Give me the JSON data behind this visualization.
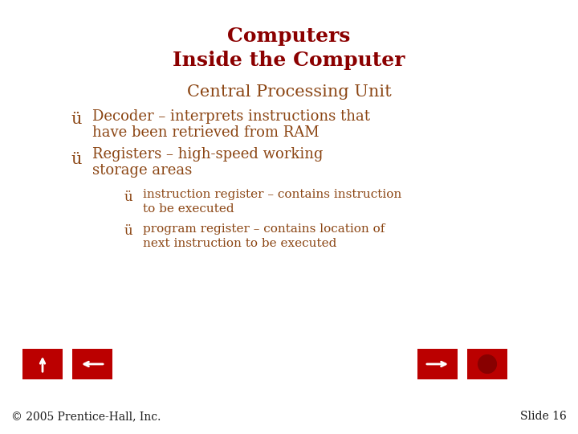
{
  "title_line1": "Computers",
  "title_line2": "Inside the Computer",
  "title_color": "#8B0000",
  "subtitle": "Central Processing Unit",
  "subtitle_color": "#8B4513",
  "bullet1_check": "ü",
  "bullet1_text_line1": "Decoder – interprets instructions that",
  "bullet1_text_line2": "have been retrieved from RAM",
  "bullet2_check": "ü",
  "bullet2_text_line1": "Registers – high-speed working",
  "bullet2_text_line2": "storage areas",
  "sub_bullet1_check": "ü",
  "sub_bullet1_text_line1": "instruction register – contains instruction",
  "sub_bullet1_text_line2": "to be executed",
  "sub_bullet2_check": "ü",
  "sub_bullet2_text_line1": "program register – contains location of",
  "sub_bullet2_text_line2": "next instruction to be executed",
  "bullet_color": "#8B4513",
  "footer_left": "© 2005 Prentice-Hall, Inc.",
  "footer_right": "Slide 16",
  "footer_color": "#1a1a1a",
  "bg_color": "#FFFFFF",
  "nav_button_color": "#BB0000"
}
